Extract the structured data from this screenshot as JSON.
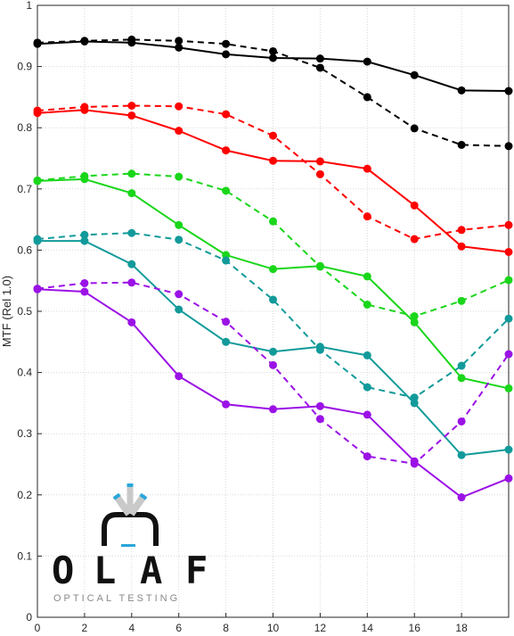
{
  "chart_data": {
    "type": "line",
    "xlabel": "",
    "ylabel": "MTF (Rel 1.0)",
    "xlim": [
      0,
      20
    ],
    "ylim": [
      0,
      1
    ],
    "xticks": [
      0,
      2,
      4,
      6,
      8,
      10,
      12,
      14,
      16,
      18
    ],
    "yticks": [
      0,
      0.1,
      0.2,
      0.3,
      0.4,
      0.5,
      0.6,
      0.7,
      0.8,
      0.9,
      1
    ],
    "ytick_labels": [
      "0",
      "0.1",
      "0.2",
      "0.3",
      "0.4",
      "0.5",
      "0.6",
      "0.7",
      "0.8",
      "0.9",
      "1"
    ],
    "grid": true,
    "x": [
      0,
      2,
      4,
      6,
      8,
      10,
      12,
      14,
      16,
      18,
      20
    ],
    "series": [
      {
        "color": "#000000",
        "style": "solid",
        "values": [
          0.937,
          0.941,
          0.939,
          0.931,
          0.92,
          0.914,
          0.913,
          0.908,
          0.886,
          0.861,
          0.86
        ]
      },
      {
        "color": "#000000",
        "style": "dashed",
        "values": [
          0.939,
          0.942,
          0.944,
          0.942,
          0.937,
          0.925,
          0.898,
          0.85,
          0.799,
          0.772,
          0.77
        ]
      },
      {
        "color": "#ff0000",
        "style": "solid",
        "values": [
          0.824,
          0.829,
          0.82,
          0.795,
          0.763,
          0.746,
          0.745,
          0.733,
          0.673,
          0.606,
          0.597
        ]
      },
      {
        "color": "#ff0000",
        "style": "dashed",
        "values": [
          0.828,
          0.834,
          0.836,
          0.835,
          0.822,
          0.787,
          0.724,
          0.655,
          0.618,
          0.633,
          0.641
        ]
      },
      {
        "color": "#1ad61a",
        "style": "solid",
        "values": [
          0.713,
          0.716,
          0.693,
          0.641,
          0.592,
          0.569,
          0.574,
          0.557,
          0.482,
          0.391,
          0.374
        ]
      },
      {
        "color": "#1ad61a",
        "style": "dashed",
        "values": [
          0.714,
          0.721,
          0.725,
          0.72,
          0.697,
          0.647,
          0.573,
          0.511,
          0.492,
          0.517,
          0.551
        ]
      },
      {
        "color": "#129a9a",
        "style": "solid",
        "values": [
          0.615,
          0.615,
          0.577,
          0.503,
          0.45,
          0.434,
          0.442,
          0.428,
          0.35,
          0.265,
          0.274
        ]
      },
      {
        "color": "#129a9a",
        "style": "dashed",
        "values": [
          0.618,
          0.625,
          0.628,
          0.617,
          0.583,
          0.519,
          0.437,
          0.376,
          0.359,
          0.411,
          0.488
        ]
      },
      {
        "color": "#9b12e6",
        "style": "solid",
        "values": [
          0.536,
          0.532,
          0.482,
          0.394,
          0.348,
          0.34,
          0.345,
          0.331,
          0.255,
          0.196,
          0.227
        ]
      },
      {
        "color": "#9b12e6",
        "style": "dashed",
        "values": [
          0.537,
          0.546,
          0.547,
          0.528,
          0.483,
          0.412,
          0.324,
          0.263,
          0.251,
          0.32,
          0.43
        ]
      }
    ]
  },
  "logo": {
    "word": "OLAF",
    "letters": [
      "O",
      "L",
      "A",
      "F"
    ],
    "subtitle": "OPTICAL TESTING"
  }
}
